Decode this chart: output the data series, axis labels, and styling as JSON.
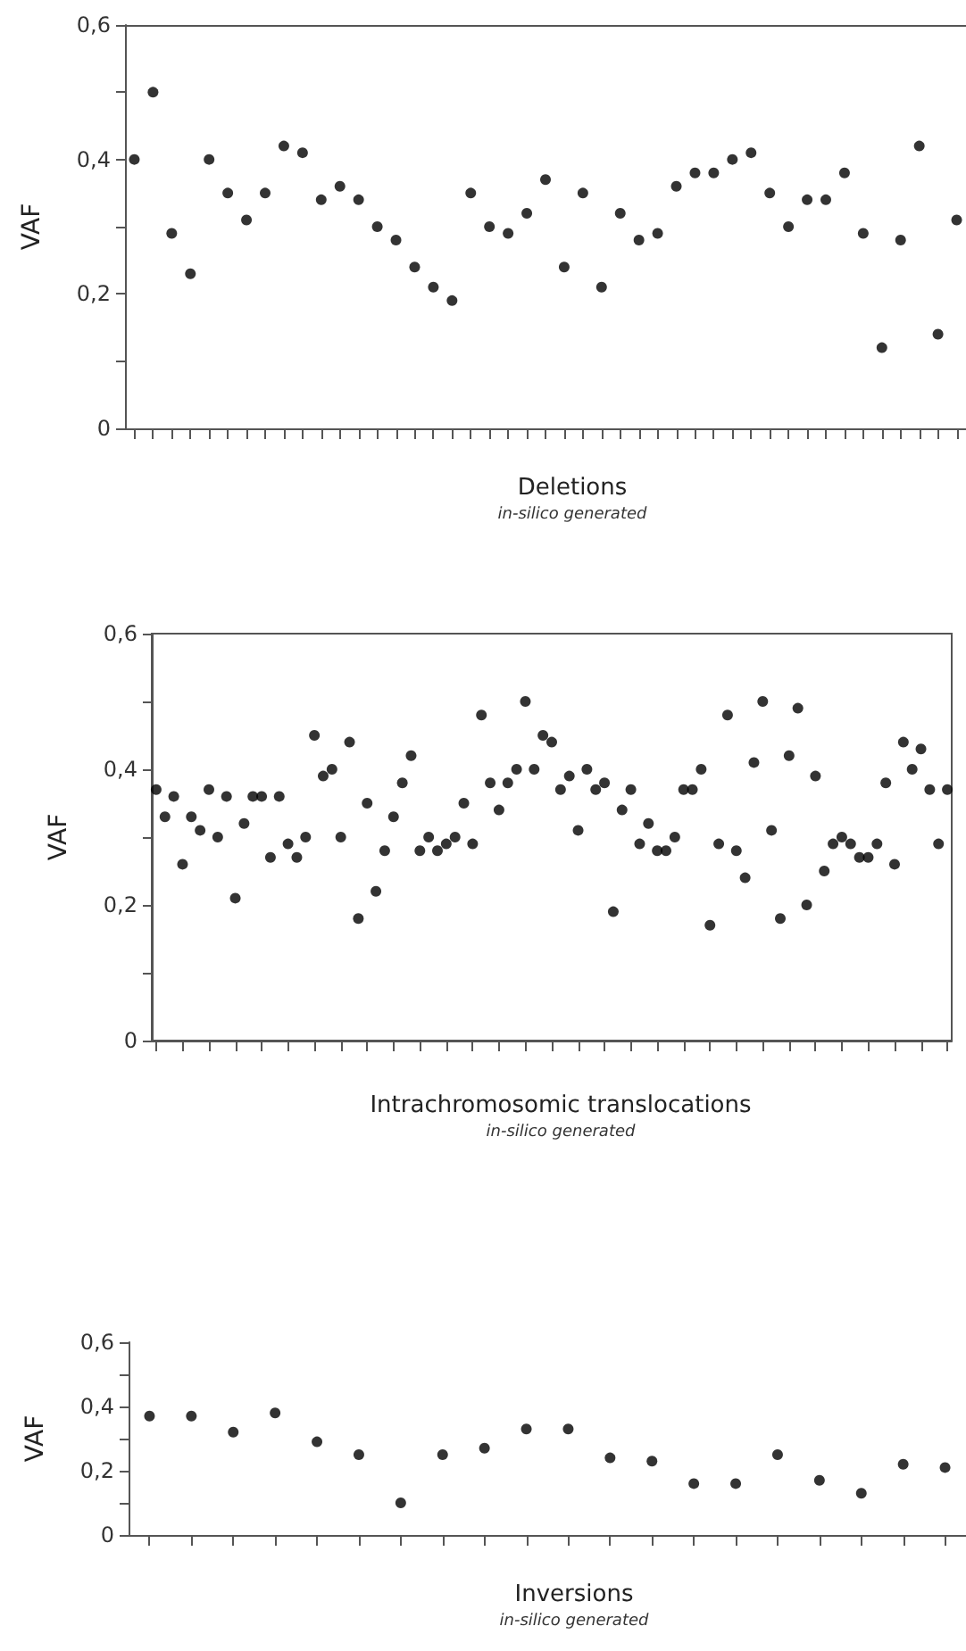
{
  "chart_data": [
    {
      "type": "scatter",
      "xlabel": "Deletions",
      "subtitle": "in-silico generated",
      "ylabel": "VAF",
      "marker": "circle",
      "categories": [
        null,
        null,
        null,
        null,
        null,
        null,
        null,
        null,
        null,
        null,
        null,
        null,
        null,
        null,
        null,
        null,
        null,
        null,
        null,
        null,
        null,
        null,
        null,
        null,
        null,
        null,
        null,
        null,
        null,
        null,
        null,
        null,
        null,
        null,
        null,
        null,
        null,
        null,
        null,
        null,
        null,
        null,
        null,
        null,
        null
      ],
      "ylim": [
        0,
        0.6
      ],
      "yticks": [
        {
          "value": 0,
          "label": "0"
        },
        {
          "value": 0.1,
          "label": null
        },
        {
          "value": 0.2,
          "label": "0,2"
        },
        {
          "value": 0.3,
          "label": null
        },
        {
          "value": 0.4,
          "label": "0,4"
        },
        {
          "value": 0.5,
          "label": null
        },
        {
          "value": 0.6,
          "label": "0,6"
        }
      ],
      "series": [
        {
          "color": "#000000",
          "values": [
            0.4,
            0.5,
            0.29,
            0.23,
            0.4,
            0.35,
            0.31,
            0.35,
            0.42,
            0.41,
            0.34,
            0.36,
            0.34,
            0.3,
            0.28,
            0.24,
            0.21,
            0.19,
            0.35,
            0.3,
            0.29,
            0.32,
            0.37,
            0.24,
            0.35,
            0.21,
            0.32,
            0.28,
            0.29,
            0.36,
            0.38,
            0.38,
            0.4,
            0.41,
            0.35,
            0.3,
            0.34,
            0.34,
            0.38,
            0.29,
            0.12,
            0.28,
            0.42,
            0.14,
            0.31
          ]
        }
      ]
    },
    {
      "type": "scatter",
      "xlabel": "Intrachromosomic translocations",
      "subtitle": "in-silico generated",
      "ylabel": "VAF",
      "marker": "circle",
      "categories": [
        null,
        null,
        null,
        null,
        null,
        null,
        null,
        null,
        null,
        null,
        null,
        null,
        null,
        null,
        null,
        null,
        null,
        null,
        null,
        null,
        null,
        null,
        null,
        null,
        null,
        null,
        null,
        null,
        null,
        null,
        null,
        null,
        null,
        null,
        null,
        null,
        null,
        null,
        null,
        null,
        null,
        null,
        null,
        null,
        null,
        null,
        null,
        null,
        null,
        null,
        null,
        null,
        null,
        null,
        null,
        null,
        null,
        null,
        null,
        null,
        null,
        null,
        null,
        null,
        null,
        null,
        null,
        null,
        null,
        null,
        null,
        null,
        null,
        null,
        null,
        null,
        null,
        null,
        null,
        null,
        null,
        null,
        null,
        null,
        null,
        null,
        null,
        null,
        null,
        null,
        null
      ],
      "ylim": [
        0,
        0.6
      ],
      "yticks": [
        {
          "value": 0,
          "label": "0"
        },
        {
          "value": 0.1,
          "label": null
        },
        {
          "value": 0.2,
          "label": "0,2"
        },
        {
          "value": 0.3,
          "label": null
        },
        {
          "value": 0.4,
          "label": "0,4"
        },
        {
          "value": 0.5,
          "label": null
        },
        {
          "value": 0.6,
          "label": "0,6"
        }
      ],
      "series": [
        {
          "color": "#000000",
          "values": [
            0.37,
            0.33,
            0.36,
            0.26,
            0.33,
            0.31,
            0.37,
            0.3,
            0.36,
            0.21,
            0.32,
            0.36,
            0.36,
            0.27,
            0.36,
            0.29,
            0.27,
            0.3,
            0.45,
            0.39,
            0.4,
            0.3,
            0.44,
            0.18,
            0.35,
            0.22,
            0.28,
            0.33,
            0.38,
            0.42,
            0.28,
            0.3,
            0.28,
            0.29,
            0.3,
            0.35,
            0.29,
            0.48,
            0.38,
            0.34,
            0.38,
            0.4,
            0.5,
            0.4,
            0.45,
            0.44,
            0.37,
            0.39,
            0.31,
            0.4,
            0.37,
            0.38,
            0.19,
            0.34,
            0.37,
            0.29,
            0.32,
            0.28,
            0.28,
            0.3,
            0.37,
            0.37,
            0.4,
            0.17,
            0.29,
            0.48,
            0.28,
            0.24,
            0.41,
            0.5,
            0.31,
            0.18,
            0.42,
            0.49,
            0.2,
            0.39,
            0.25,
            0.29,
            0.3,
            0.29,
            0.27,
            0.27,
            0.29,
            0.38,
            0.26,
            0.44,
            0.4,
            0.43,
            0.37,
            0.29,
            0.37
          ]
        }
      ]
    },
    {
      "type": "scatter",
      "xlabel": "Inversions",
      "subtitle": "in-silico generated",
      "ylabel": "VAF",
      "marker": "circle",
      "categories": [
        null,
        null,
        null,
        null,
        null,
        null,
        null,
        null,
        null,
        null,
        null,
        null,
        null,
        null,
        null,
        null,
        null,
        null,
        null,
        null
      ],
      "ylim": [
        0,
        0.6
      ],
      "yticks": [
        {
          "value": 0,
          "label": "0"
        },
        {
          "value": 0.1,
          "label": null
        },
        {
          "value": 0.2,
          "label": "0,2"
        },
        {
          "value": 0.3,
          "label": null
        },
        {
          "value": 0.4,
          "label": "0,4"
        },
        {
          "value": 0.5,
          "label": null
        },
        {
          "value": 0.6,
          "label": "0,6"
        }
      ],
      "series": [
        {
          "color": "#000000",
          "values": [
            0.37,
            0.37,
            0.32,
            0.38,
            0.29,
            0.25,
            0.1,
            0.25,
            0.27,
            0.33,
            0.33,
            0.24,
            0.23,
            0.16,
            0.16,
            0.25,
            0.17,
            0.13,
            0.22,
            0.21
          ]
        }
      ]
    }
  ]
}
